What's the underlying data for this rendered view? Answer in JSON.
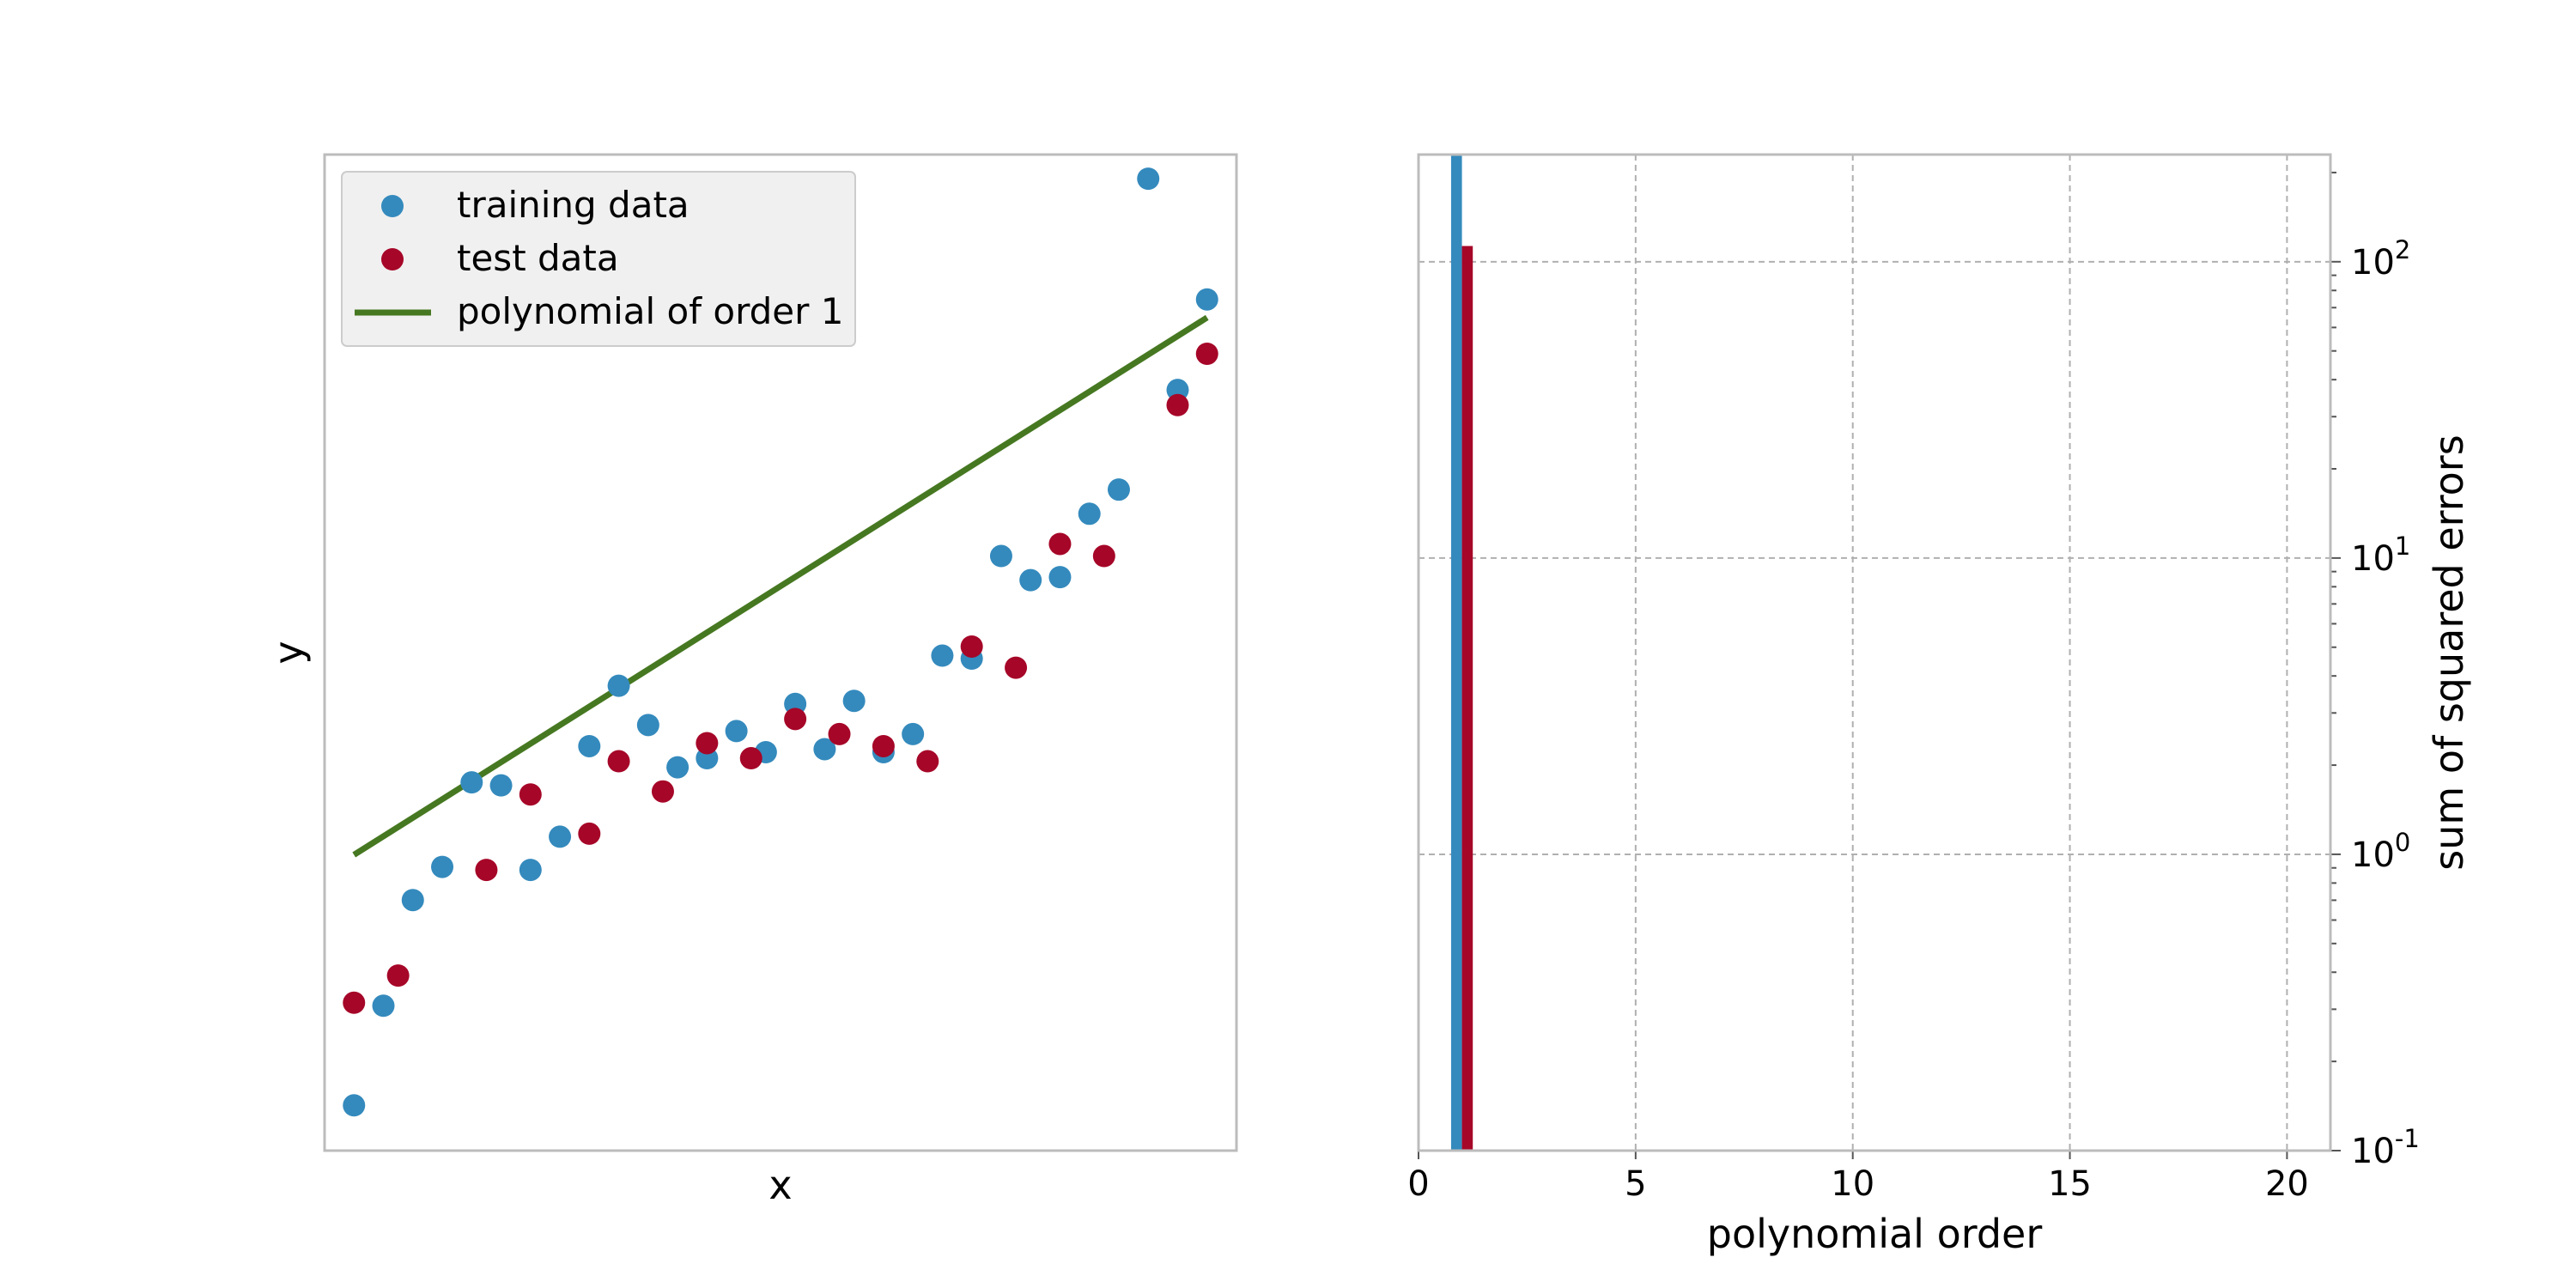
{
  "chart_data": [
    {
      "type": "scatter",
      "xlabel": "x",
      "ylabel": "y",
      "xlim": [
        0,
        31
      ],
      "ylim": [
        -0.4,
        2.9
      ],
      "grid": false,
      "x_ticks_visible": false,
      "y_ticks_visible": false,
      "legend_placement": "upper-left",
      "colors": {
        "training": "#348abd",
        "test": "#a60628",
        "fit": "#467821"
      },
      "legend": {
        "training_label": "training data",
        "test_label": "test data",
        "fit_label": "polynomial of order 1"
      },
      "series": [
        {
          "name": "training data",
          "x": [
            1,
            2,
            3,
            4,
            5,
            6,
            7,
            8,
            9,
            10,
            11,
            12,
            13,
            14,
            15,
            16,
            17,
            18,
            19,
            20,
            21,
            22,
            23,
            24,
            25,
            26,
            27,
            28,
            29,
            30
          ],
          "y": [
            -0.25,
            0.08,
            0.43,
            0.54,
            0.82,
            0.81,
            0.53,
            0.64,
            0.94,
            1.14,
            1.01,
            0.87,
            0.9,
            0.99,
            0.92,
            1.08,
            0.93,
            1.09,
            0.92,
            0.98,
            1.24,
            1.23,
            1.57,
            1.49,
            1.5,
            1.71,
            1.79,
            2.82,
            2.12,
            2.42
          ]
        },
        {
          "name": "test data",
          "x": [
            1,
            2.5,
            5.5,
            7,
            9,
            10,
            11.5,
            13,
            14.5,
            16,
            17.5,
            19,
            20.5,
            22,
            23.5,
            25,
            26.5,
            29,
            30
          ],
          "y": [
            0.09,
            0.18,
            0.53,
            0.78,
            0.65,
            0.89,
            0.79,
            0.95,
            0.9,
            1.03,
            0.98,
            0.94,
            0.89,
            1.27,
            1.2,
            1.61,
            1.57,
            2.07,
            2.24
          ]
        },
        {
          "name": "polynomial of order 1",
          "x": [
            1,
            30
          ],
          "y": [
            0.58,
            2.36
          ]
        }
      ]
    },
    {
      "type": "bar",
      "xlabel": "polynomial order",
      "ylabel": "sum of squared errors",
      "y_scale": "log",
      "xlim": [
        0,
        21
      ],
      "ylim": [
        0.1,
        230
      ],
      "x_ticks": [
        0,
        5,
        10,
        15,
        20
      ],
      "y_ticks": [
        {
          "base": "10",
          "exp": "-1",
          "value": 0.1
        },
        {
          "base": "10",
          "exp": "0",
          "value": 1
        },
        {
          "base": "10",
          "exp": "1",
          "value": 10
        },
        {
          "base": "10",
          "exp": "2",
          "value": 100
        }
      ],
      "y_axis_side": "right",
      "grid": true,
      "colors": {
        "train": "#348abd",
        "test": "#a60628"
      },
      "bar_width": 0.25,
      "series": [
        {
          "x": [
            0.875
          ],
          "values": [
            230
          ]
        },
        {
          "x": [
            1.125
          ],
          "values": [
            113
          ]
        }
      ]
    }
  ]
}
